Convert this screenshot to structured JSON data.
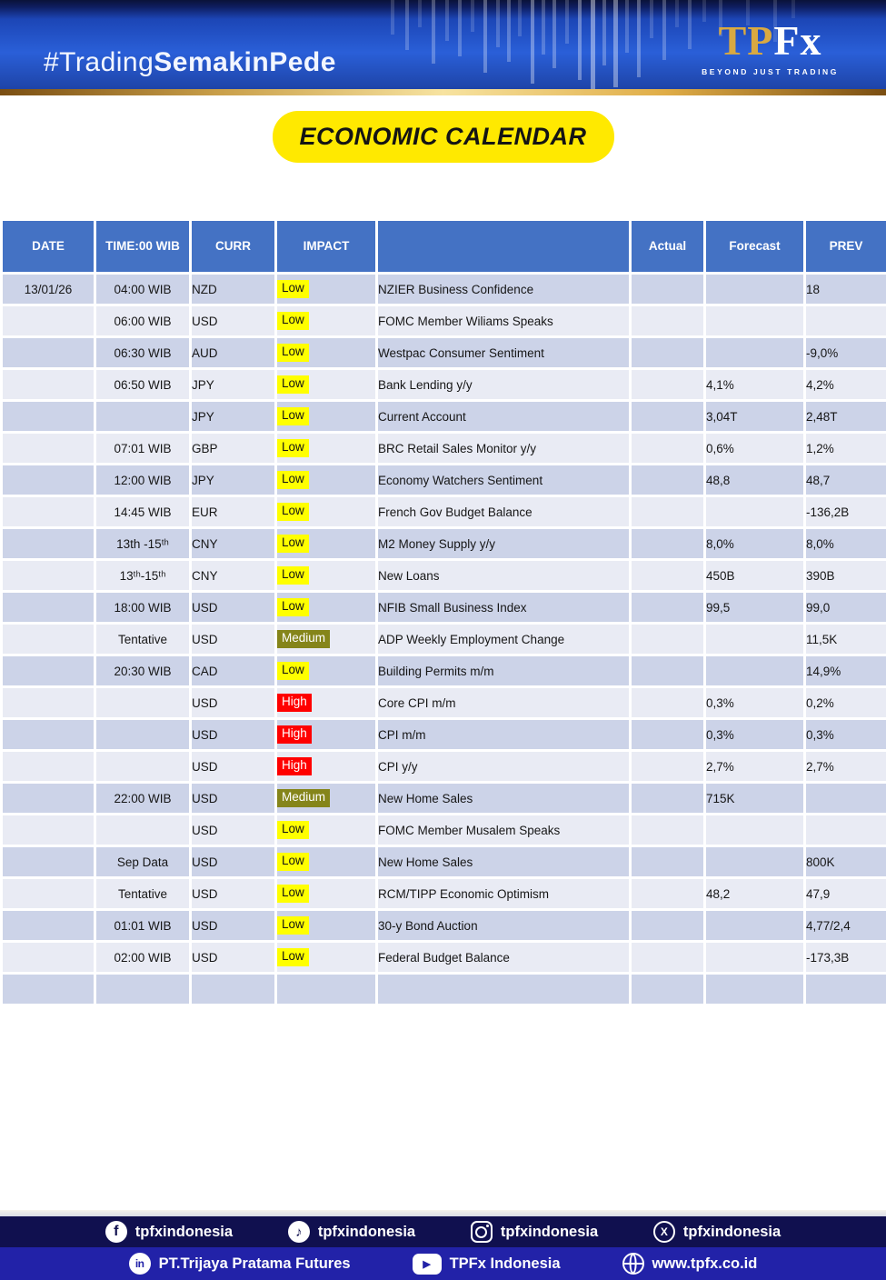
{
  "banner": {
    "hashtag_light": "#Trading",
    "hashtag_bold": "SemakinPede",
    "logo_tp": "TP",
    "logo_fx": "Fx",
    "logo_tagline": "BEYOND JUST TRADING"
  },
  "title": "ECONOMIC CALENDAR",
  "table": {
    "headers": [
      "DATE",
      "TIME:00 WIB",
      "CURR",
      "IMPACT",
      "",
      "Actual",
      "Forecast",
      "PREV"
    ],
    "rows": [
      {
        "date": "13/01/26",
        "time": "04:00 WIB",
        "curr": "NZD",
        "impact": "Low",
        "level": "low",
        "event": "NZIER Business Confidence",
        "actual": "",
        "forecast": "",
        "prev": "18"
      },
      {
        "date": "",
        "time": "06:00 WIB",
        "curr": "USD",
        "impact": "Low",
        "level": "low",
        "event": "FOMC Member Wiliams Speaks",
        "actual": "",
        "forecast": "",
        "prev": ""
      },
      {
        "date": "",
        "time": "06:30 WIB",
        "curr": "AUD",
        "impact": "Low",
        "level": "low",
        "event": "Westpac Consumer Sentiment",
        "actual": "",
        "forecast": "",
        "prev": "-9,0%"
      },
      {
        "date": "",
        "time": "06:50 WIB",
        "curr": "JPY",
        "impact": "Low",
        "level": "low",
        "event": "Bank Lending y/y",
        "actual": "",
        "forecast": "4,1%",
        "prev": "4,2%"
      },
      {
        "date": "",
        "time": "",
        "curr": "JPY",
        "impact": "Low",
        "level": "low",
        "event": "Current Account",
        "actual": "",
        "forecast": "3,04T",
        "prev": "2,48T"
      },
      {
        "date": "",
        "time": "07:01 WIB",
        "curr": "GBP",
        "impact": "Low",
        "level": "low",
        "event": "BRC Retail Sales Monitor y/y",
        "actual": "",
        "forecast": "0,6%",
        "prev": "1,2%"
      },
      {
        "date": "",
        "time": "12:00 WIB",
        "curr": "JPY",
        "impact": "Low",
        "level": "low",
        "event": "Economy Watchers Sentiment",
        "actual": "",
        "forecast": "48,8",
        "prev": "48,7"
      },
      {
        "date": "",
        "time": "14:45 WIB",
        "curr": "EUR",
        "impact": "Low",
        "level": "low",
        "event": "French Gov Budget Balance",
        "actual": "",
        "forecast": "",
        "prev": "-136,2B"
      },
      {
        "date": "",
        "time": "13th -15ᵗʰ",
        "curr": "CNY",
        "impact": "Low",
        "level": "low",
        "event": "M2 Money Supply y/y",
        "actual": "",
        "forecast": "8,0%",
        "prev": "8,0%"
      },
      {
        "date": "",
        "time": "13ᵗʰ-15ᵗʰ",
        "curr": "CNY",
        "impact": "Low",
        "level": "low",
        "event": "New Loans",
        "actual": "",
        "forecast": "450B",
        "prev": "390B"
      },
      {
        "date": "",
        "time": "18:00 WIB",
        "curr": "USD",
        "impact": "Low",
        "level": "low",
        "event": "NFIB Small Business Index",
        "actual": "",
        "forecast": "99,5",
        "prev": "99,0"
      },
      {
        "date": "",
        "time": "Tentative",
        "curr": "USD",
        "impact": "Medium",
        "level": "medium",
        "event": "ADP Weekly Employment Change",
        "actual": "",
        "forecast": "",
        "prev": "11,5K"
      },
      {
        "date": "",
        "time": "20:30 WIB",
        "curr": "CAD",
        "impact": "Low",
        "level": "low",
        "event": "Building Permits m/m",
        "actual": "",
        "forecast": "",
        "prev": "14,9%"
      },
      {
        "date": "",
        "time": "",
        "curr": "USD",
        "impact": "High",
        "level": "high",
        "event": "Core CPI m/m",
        "actual": "",
        "forecast": "0,3%",
        "prev": "0,2%"
      },
      {
        "date": "",
        "time": "",
        "curr": "USD",
        "impact": "High",
        "level": "high",
        "event": "CPI m/m",
        "actual": "",
        "forecast": "0,3%",
        "prev": "0,3%"
      },
      {
        "date": "",
        "time": "",
        "curr": "USD",
        "impact": "High",
        "level": "high",
        "event": "CPI y/y",
        "actual": "",
        "forecast": "2,7%",
        "prev": "2,7%"
      },
      {
        "date": "",
        "time": "22:00 WIB",
        "curr": "USD",
        "impact": "Medium",
        "level": "medium",
        "event": "New Home Sales",
        "actual": "",
        "forecast": "715K",
        "prev": ""
      },
      {
        "date": "",
        "time": "",
        "curr": "USD",
        "impact": "Low",
        "level": "low",
        "event": "FOMC Member Musalem Speaks",
        "actual": "",
        "forecast": "",
        "prev": ""
      },
      {
        "date": "",
        "time": "Sep Data",
        "curr": "USD",
        "impact": "Low",
        "level": "low",
        "event": "New Home Sales",
        "actual": "",
        "forecast": "",
        "prev": "800K"
      },
      {
        "date": "",
        "time": "Tentative",
        "curr": "USD",
        "impact": "Low",
        "level": "low",
        "event": "RCM/TIPP Economic Optimism",
        "actual": "",
        "forecast": "48,2",
        "prev": "47,9"
      },
      {
        "date": "",
        "time": "01:01 WIB",
        "curr": "USD",
        "impact": "Low",
        "level": "low",
        "event": "30-y Bond Auction",
        "actual": "",
        "forecast": "",
        "prev": "4,77/2,4"
      },
      {
        "date": "",
        "time": "02:00 WIB",
        "curr": "USD",
        "impact": "Low",
        "level": "low",
        "event": "Federal Budget Balance",
        "actual": "",
        "forecast": "",
        "prev": "-173,3B"
      },
      {
        "date": "",
        "time": "",
        "curr": "",
        "impact": "",
        "level": "",
        "event": "",
        "actual": "",
        "forecast": "",
        "prev": ""
      }
    ]
  },
  "footer": {
    "row1": [
      {
        "icon": "facebook",
        "label": "tpfxindonesia"
      },
      {
        "icon": "tiktok",
        "label": "tpfxindonesia"
      },
      {
        "icon": "instagram",
        "label": "tpfxindonesia"
      },
      {
        "icon": "x",
        "label": "tpfxindonesia"
      }
    ],
    "row2": [
      {
        "icon": "linkedin",
        "label": "PT.Trijaya Pratama Futures"
      },
      {
        "icon": "youtube",
        "label": "TPFx Indonesia"
      },
      {
        "icon": "globe",
        "label": "www.tpfx.co.id"
      }
    ]
  },
  "colors": {
    "header_blue": "#4472c4",
    "row_dark": "#ccd3e8",
    "row_light": "#e9ebf4",
    "impact_low_bg": "#ffff00",
    "impact_medium_bg": "#85851a",
    "impact_high_bg": "#ff0000",
    "title_yellow": "#ffe900",
    "banner_blue": "#2a5fd8",
    "gold": "#d9a941",
    "footer_navy": "#10104f",
    "footer_blue": "#2222a8"
  }
}
